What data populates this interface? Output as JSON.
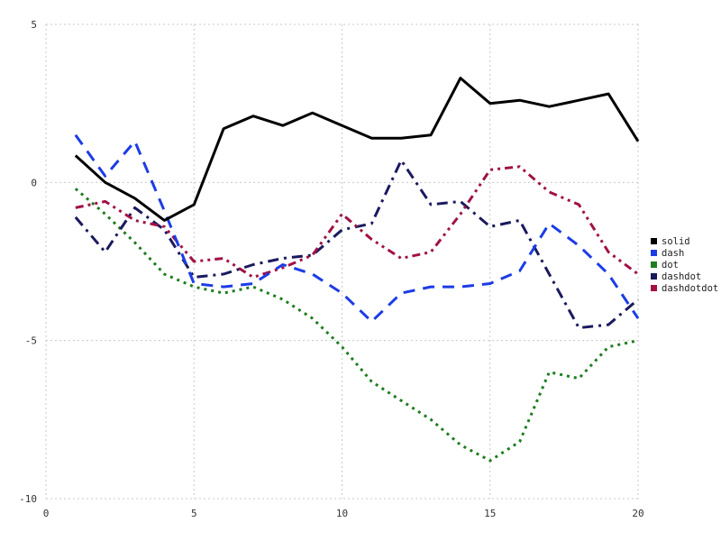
{
  "chart_data": {
    "type": "line",
    "title": "",
    "xlabel": "",
    "ylabel": "",
    "xlim": [
      0,
      20
    ],
    "ylim": [
      -10,
      5
    ],
    "xticks": [
      0,
      5,
      10,
      15,
      20
    ],
    "yticks": [
      -10,
      -5,
      0,
      5
    ],
    "grid": true,
    "grid_color": "#c8c8c8",
    "tick_label_color": "#333333",
    "legend_position": "right",
    "x": [
      1,
      2,
      3,
      4,
      5,
      6,
      7,
      8,
      9,
      10,
      11,
      12,
      13,
      14,
      15,
      16,
      17,
      18,
      19,
      20
    ],
    "series": [
      {
        "name": "solid",
        "color": "#000000",
        "dash": "",
        "values": [
          0.85,
          0.0,
          -0.5,
          -1.2,
          -0.7,
          1.7,
          2.1,
          1.8,
          2.2,
          1.8,
          1.4,
          1.4,
          1.5,
          3.3,
          2.5,
          2.6,
          2.4,
          2.6,
          2.8,
          1.3
        ]
      },
      {
        "name": "dash",
        "color": "#1c3ce6",
        "dash": "13,9",
        "values": [
          1.5,
          0.2,
          1.3,
          -0.9,
          -3.2,
          -3.3,
          -3.2,
          -2.6,
          -2.9,
          -3.5,
          -4.4,
          -3.5,
          -3.3,
          -3.3,
          -3.2,
          -2.8,
          -1.3,
          -2.0,
          -2.9,
          -4.3
        ]
      },
      {
        "name": "dot",
        "color": "#1e7d1e",
        "dash": "3,5",
        "values": [
          -0.2,
          -1.0,
          -1.9,
          -2.9,
          -3.3,
          -3.5,
          -3.3,
          -3.7,
          -4.3,
          -5.2,
          -6.3,
          -6.9,
          -7.5,
          -8.3,
          -8.8,
          -8.2,
          -6.0,
          -6.2,
          -5.2,
          -5.0
        ]
      },
      {
        "name": "dashdot",
        "color": "#1a1a5e",
        "dash": "12,6,3,6",
        "values": [
          -1.1,
          -2.2,
          -0.8,
          -1.5,
          -3.0,
          -2.9,
          -2.6,
          -2.4,
          -2.3,
          -1.5,
          -1.3,
          0.7,
          -0.7,
          -0.6,
          -1.4,
          -1.2,
          -2.9,
          -4.6,
          -4.5,
          -3.7
        ]
      },
      {
        "name": "dashdotdot",
        "color": "#a01245",
        "dash": "9,5,3,5,3,5",
        "values": [
          -0.8,
          -0.6,
          -1.2,
          -1.4,
          -2.5,
          -2.4,
          -3.0,
          -2.7,
          -2.3,
          -1.0,
          -1.8,
          -2.4,
          -2.2,
          -1.0,
          0.4,
          0.5,
          -0.3,
          -0.7,
          -2.2,
          -2.9
        ]
      }
    ]
  }
}
